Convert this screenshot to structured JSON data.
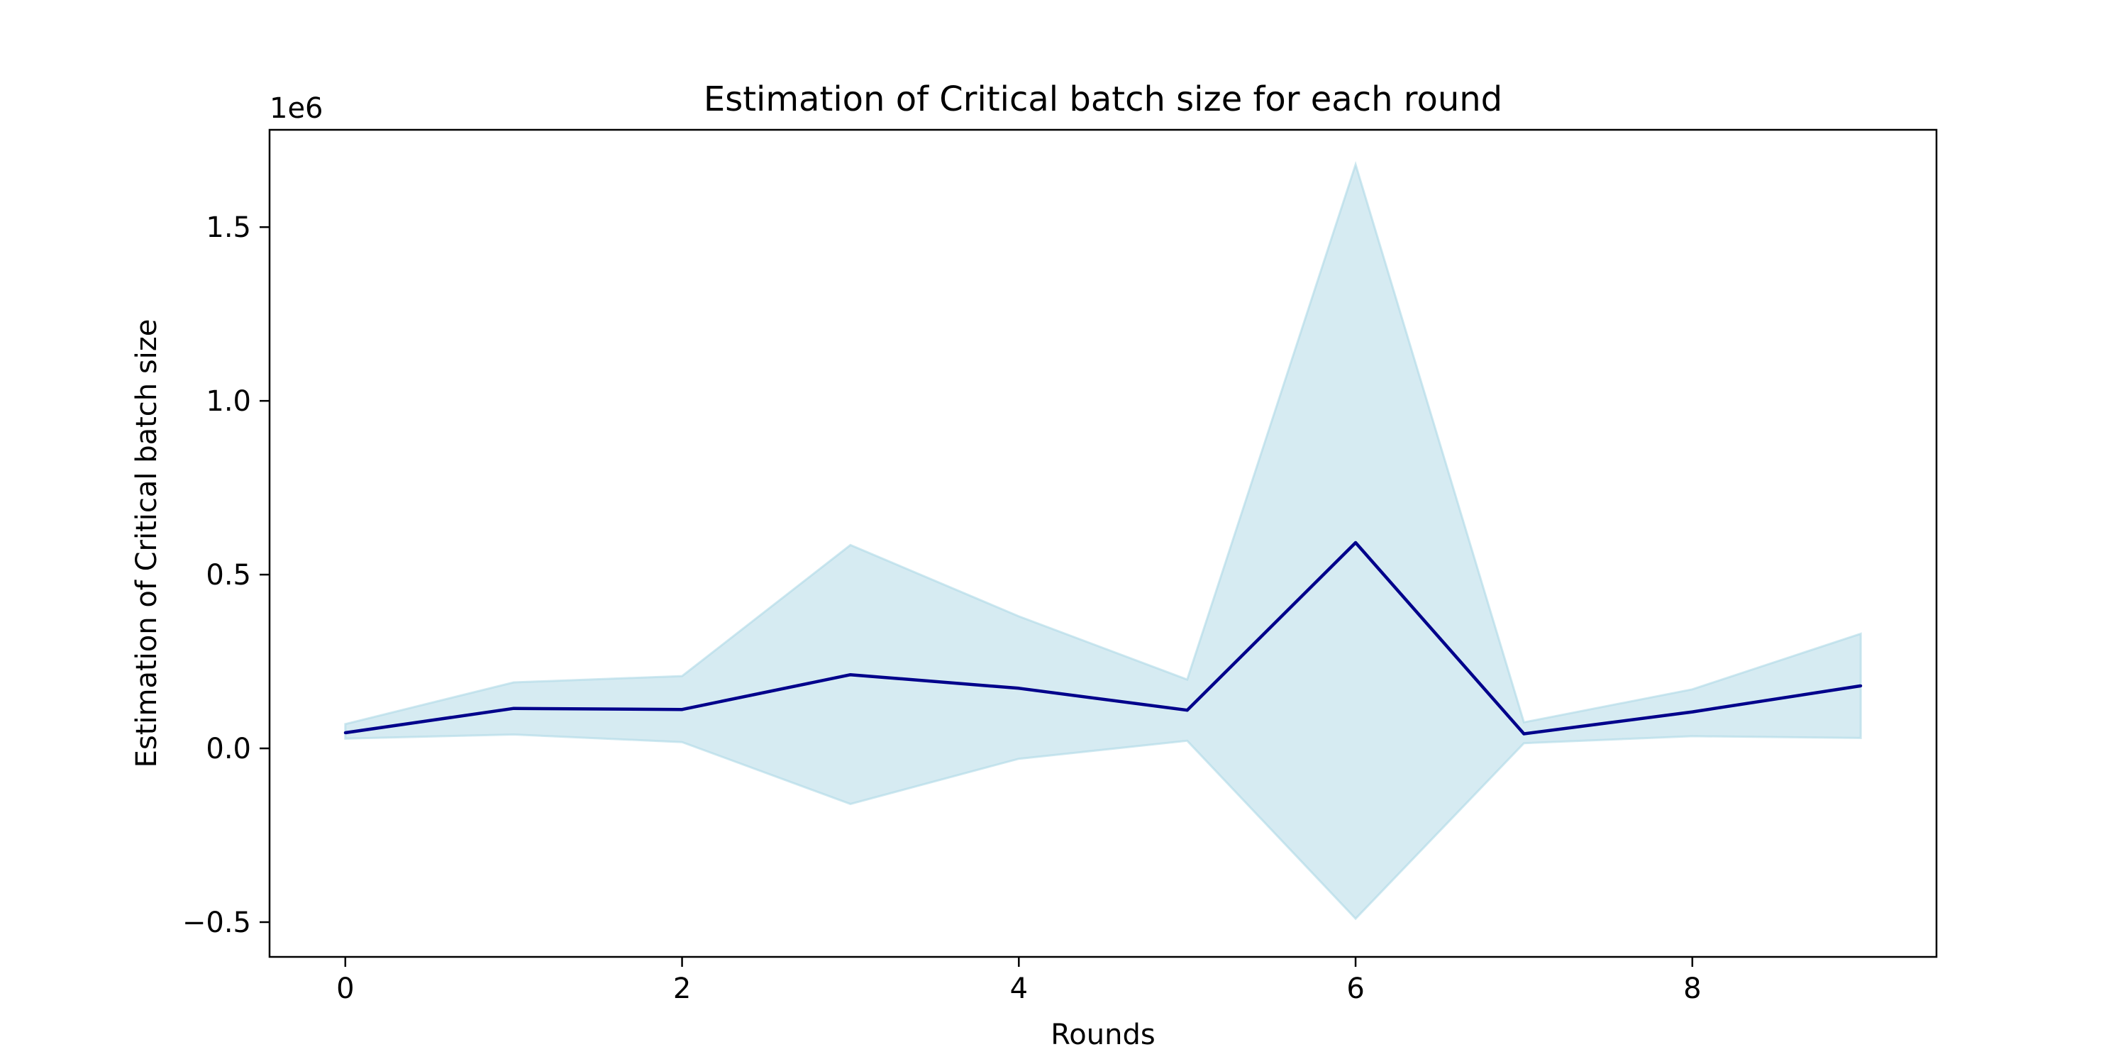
{
  "chart_data": {
    "type": "line",
    "title": "Estimation of Critical batch size for each round",
    "xlabel": "Rounds",
    "ylabel": "Estimation of Critical batch size",
    "y_offset_label": "1e6",
    "y_scale_factor": 1000000,
    "xlim": [
      -0.45,
      9.45
    ],
    "ylim": [
      -600000,
      1780000
    ],
    "x_ticks": [
      0,
      2,
      4,
      6,
      8
    ],
    "x_tick_labels": [
      "0",
      "2",
      "4",
      "6",
      "8"
    ],
    "y_ticks": [
      -500000,
      0,
      500000,
      1000000,
      1500000
    ],
    "y_tick_labels": [
      "−0.5",
      "0.0",
      "0.5",
      "1.0",
      "1.5"
    ],
    "grid": false,
    "legend": "none",
    "x": [
      0,
      1,
      2,
      3,
      4,
      5,
      6,
      7,
      8,
      9
    ],
    "series": [
      {
        "values": [
          45000,
          115000,
          112000,
          212000,
          173000,
          110000,
          592000,
          42000,
          105000,
          180000
        ],
        "color": "#00008b"
      }
    ],
    "band": {
      "upper": [
        70000,
        190000,
        208000,
        585000,
        380000,
        198000,
        1680000,
        75000,
        170000,
        330000
      ],
      "lower": [
        28000,
        40000,
        18000,
        -160000,
        -30000,
        22000,
        -490000,
        15000,
        35000,
        30000
      ],
      "color": "#add8e6",
      "opacity": 0.5
    }
  }
}
